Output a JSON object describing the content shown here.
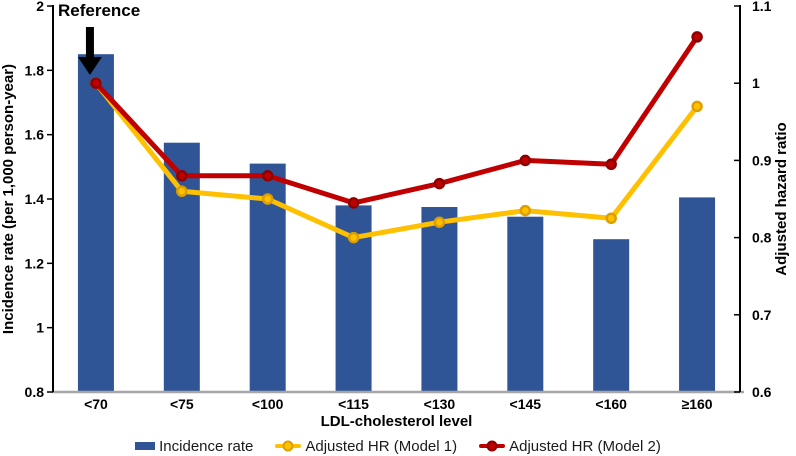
{
  "chart_data": {
    "type": "bar+line",
    "title": "",
    "categories": [
      "<70",
      "<75",
      "<100",
      "<115",
      "<130",
      "<145",
      "<160",
      "≥160"
    ],
    "x_axis": {
      "label": "LDL-cholesterol level"
    },
    "left_axis": {
      "label": "Incidence rate (per 1,000 person-year)",
      "min": 0.8,
      "max": 2,
      "ticks": [
        0.8,
        1,
        1.2,
        1.4,
        1.6,
        1.8,
        2
      ],
      "tick_labels": [
        "0.8",
        "1",
        "1.2",
        "1.4",
        "1.6",
        "1.8",
        "2"
      ]
    },
    "right_axis": {
      "label": "Adjusted hazard ratio",
      "min": 0.6,
      "max": 1.1,
      "ticks": [
        0.6,
        0.7,
        0.8,
        0.9,
        1,
        1.1
      ],
      "tick_labels": [
        "0.6",
        "0.7",
        "0.8",
        "0.9",
        "1",
        "1.1"
      ]
    },
    "series": [
      {
        "name": "Incidence rate",
        "type": "bar",
        "axis": "left",
        "color": "#2F5597",
        "values": [
          1.85,
          1.575,
          1.51,
          1.38,
          1.375,
          1.345,
          1.275,
          1.405
        ]
      },
      {
        "name": "Adjusted HR (Model 1)",
        "type": "line",
        "axis": "right",
        "color": "#FFC000",
        "marker_edge": "#DD9F00",
        "values": [
          1.0,
          0.86,
          0.85,
          0.8,
          0.82,
          0.835,
          0.825,
          0.97
        ]
      },
      {
        "name": "Adjusted HR (Model 2)",
        "type": "line",
        "axis": "right",
        "color": "#C00000",
        "marker_edge": "#8E0000",
        "values": [
          1.0,
          0.88,
          0.88,
          0.845,
          0.87,
          0.9,
          0.895,
          1.06
        ]
      }
    ],
    "annotation": {
      "text": "Reference",
      "category_index": 0
    },
    "legend_position": "bottom",
    "grid": false,
    "colors": {
      "bar": "#2F5597",
      "model1": "#FFC000",
      "model2": "#C00000",
      "baseline": "#A6A6A6",
      "axis": "#000000"
    }
  }
}
